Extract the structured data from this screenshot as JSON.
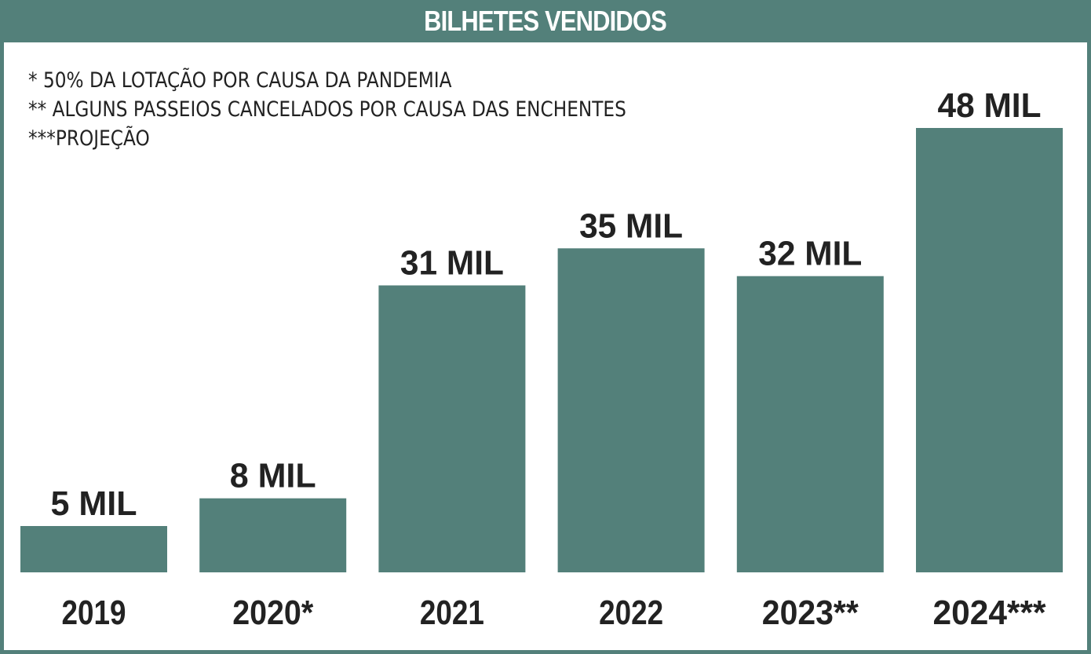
{
  "colors": {
    "accent": "#53807a",
    "bar": "#53807a",
    "text": "#222222",
    "title_text": "#ffffff"
  },
  "chart_data": {
    "type": "bar",
    "title": "BILHETES VENDIDOS",
    "categories": [
      "2019",
      "2020*",
      "2021",
      "2022",
      "2023**",
      "2024***"
    ],
    "values": [
      5,
      8,
      31,
      35,
      32,
      48
    ],
    "value_labels": [
      "5 MIL",
      "8 MIL",
      "31 MIL",
      "35 MIL",
      "32 MIL",
      "48 MIL"
    ],
    "unit": "MIL",
    "ylim": [
      0,
      48
    ],
    "grid": false,
    "notes": [
      "* 50% DA LOTAÇÃO POR CAUSA DA PANDEMIA",
      "** ALGUNS PASSEIOS CANCELADOS POR CAUSA DAS ENCHENTES",
      "***PROJEÇÃO"
    ]
  }
}
